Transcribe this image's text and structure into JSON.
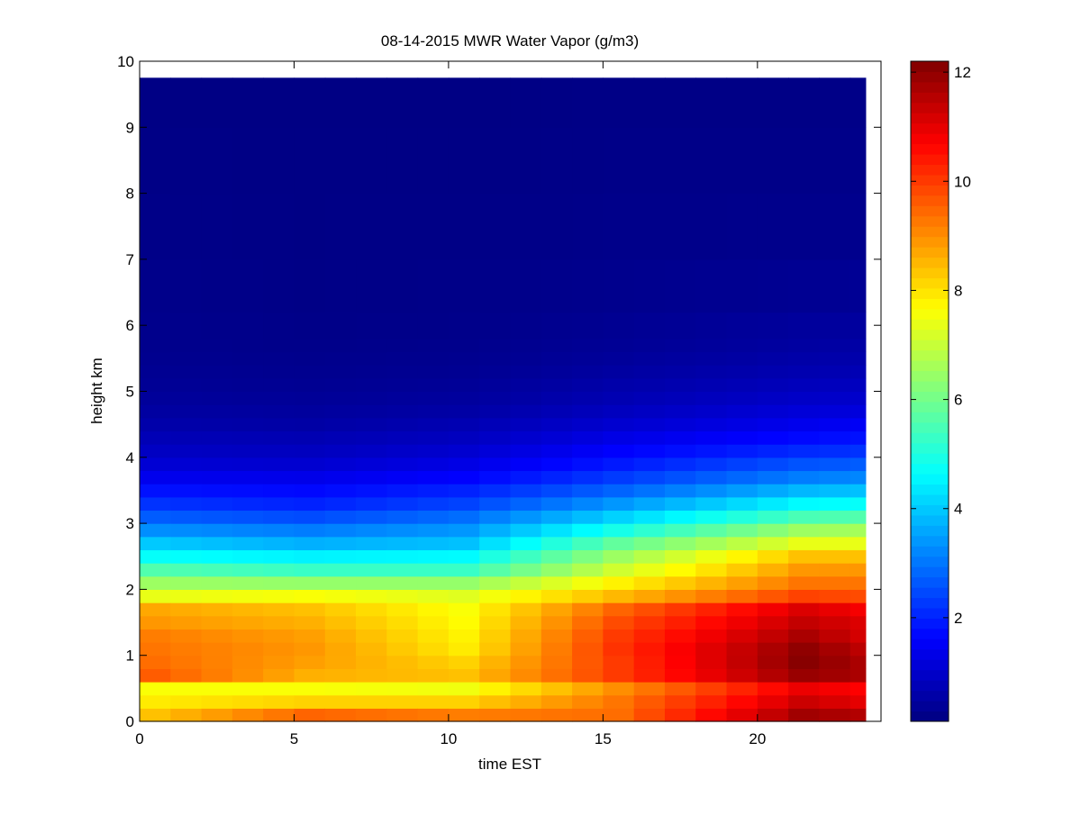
{
  "chart_data": {
    "type": "heatmap",
    "title": "08-14-2015 MWR Water Vapor (g/m3)",
    "xlabel": "time EST",
    "ylabel": "height km",
    "xlim": [
      0,
      24
    ],
    "ylim": [
      0,
      10
    ],
    "xticks": [
      0,
      5,
      10,
      15,
      20
    ],
    "yticks": [
      0,
      1,
      2,
      3,
      4,
      5,
      6,
      7,
      8,
      9,
      10
    ],
    "colormap": "jet",
    "clim": [
      0.1,
      12.2
    ],
    "colorbar_ticks": [
      2,
      4,
      6,
      8,
      10,
      12
    ],
    "x": [
      0.5,
      1.5,
      2.5,
      3.5,
      4.5,
      5.5,
      6.5,
      7.5,
      8.5,
      9.5,
      10.5,
      11.5,
      12.5,
      13.5,
      14.5,
      15.5,
      16.5,
      17.5,
      18.5,
      19.5,
      20.5,
      21.5,
      22.5,
      23.5
    ],
    "y": [
      0.1,
      0.3,
      0.5,
      0.7,
      0.9,
      1.1,
      1.3,
      1.5,
      1.7,
      1.9,
      2.1,
      2.3,
      2.5,
      2.7,
      2.9,
      3.1,
      3.3,
      3.5,
      3.7,
      3.9,
      4.1,
      4.3,
      4.5,
      4.7,
      4.9,
      5.1,
      5.3,
      5.5,
      5.7,
      5.9,
      6.5,
      7.5,
      8.5,
      9.5
    ],
    "profiles_at_x": [
      {
        "x": 0.5,
        "values": [
          8.4,
          7.9,
          7.6,
          9.6,
          9.4,
          9.3,
          9.2,
          8.9,
          8.7,
          7.4,
          6.5,
          5.6,
          4.7,
          4.0,
          3.3,
          2.7,
          2.2,
          1.8,
          1.4,
          1.1,
          0.9,
          0.75,
          0.6,
          0.5,
          0.42,
          0.36,
          0.32,
          0.28,
          0.26,
          0.25,
          0.22,
          0.2,
          0.18,
          0.16
        ]
      },
      {
        "x": 5.5,
        "values": [
          9.5,
          8.2,
          7.6,
          8.6,
          8.8,
          8.9,
          8.8,
          8.6,
          8.4,
          7.6,
          6.4,
          5.3,
          4.5,
          3.7,
          3.1,
          2.5,
          2.0,
          1.7,
          1.35,
          1.05,
          0.85,
          0.7,
          0.55,
          0.45,
          0.38,
          0.32,
          0.28,
          0.25,
          0.22,
          0.2,
          0.18,
          0.17,
          0.16,
          0.15
        ]
      },
      {
        "x": 10.5,
        "values": [
          9.2,
          8.2,
          7.5,
          8.4,
          8.2,
          7.9,
          7.8,
          7.7,
          7.6,
          7.3,
          6.4,
          5.3,
          4.6,
          3.9,
          3.4,
          2.9,
          2.4,
          2.0,
          1.6,
          1.3,
          1.05,
          0.85,
          0.7,
          0.55,
          0.45,
          0.38,
          0.32,
          0.28,
          0.25,
          0.22,
          0.2,
          0.18,
          0.16,
          0.15
        ]
      },
      {
        "x": 15.5,
        "values": [
          9.4,
          9.3,
          9.0,
          10.0,
          10.0,
          10.1,
          10.0,
          9.8,
          9.5,
          8.5,
          7.8,
          7.1,
          6.5,
          5.8,
          4.9,
          4.1,
          3.4,
          2.8,
          2.3,
          1.9,
          1.6,
          1.3,
          1.05,
          0.85,
          0.7,
          0.6,
          0.5,
          0.42,
          0.36,
          0.32,
          0.26,
          0.22,
          0.2,
          0.18
        ]
      },
      {
        "x": 21.5,
        "values": [
          11.8,
          11.3,
          10.9,
          11.9,
          12.1,
          12.0,
          11.7,
          11.4,
          11.1,
          9.9,
          9.3,
          8.9,
          8.4,
          7.4,
          6.5,
          5.5,
          4.6,
          3.8,
          3.1,
          2.6,
          2.1,
          1.7,
          1.4,
          1.15,
          0.95,
          0.8,
          0.68,
          0.58,
          0.5,
          0.44,
          0.32,
          0.24,
          0.2,
          0.18
        ]
      },
      {
        "x": 23.5,
        "values": [
          11.6,
          11.0,
          10.7,
          11.7,
          11.7,
          11.5,
          11.2,
          11.1,
          10.8,
          9.8,
          9.3,
          8.9,
          8.4,
          7.4,
          6.6,
          5.6,
          4.7,
          3.9,
          3.2,
          2.7,
          2.2,
          1.8,
          1.5,
          1.2,
          1.0,
          0.85,
          0.72,
          0.62,
          0.54,
          0.46,
          0.34,
          0.26,
          0.22,
          0.2
        ]
      }
    ]
  }
}
